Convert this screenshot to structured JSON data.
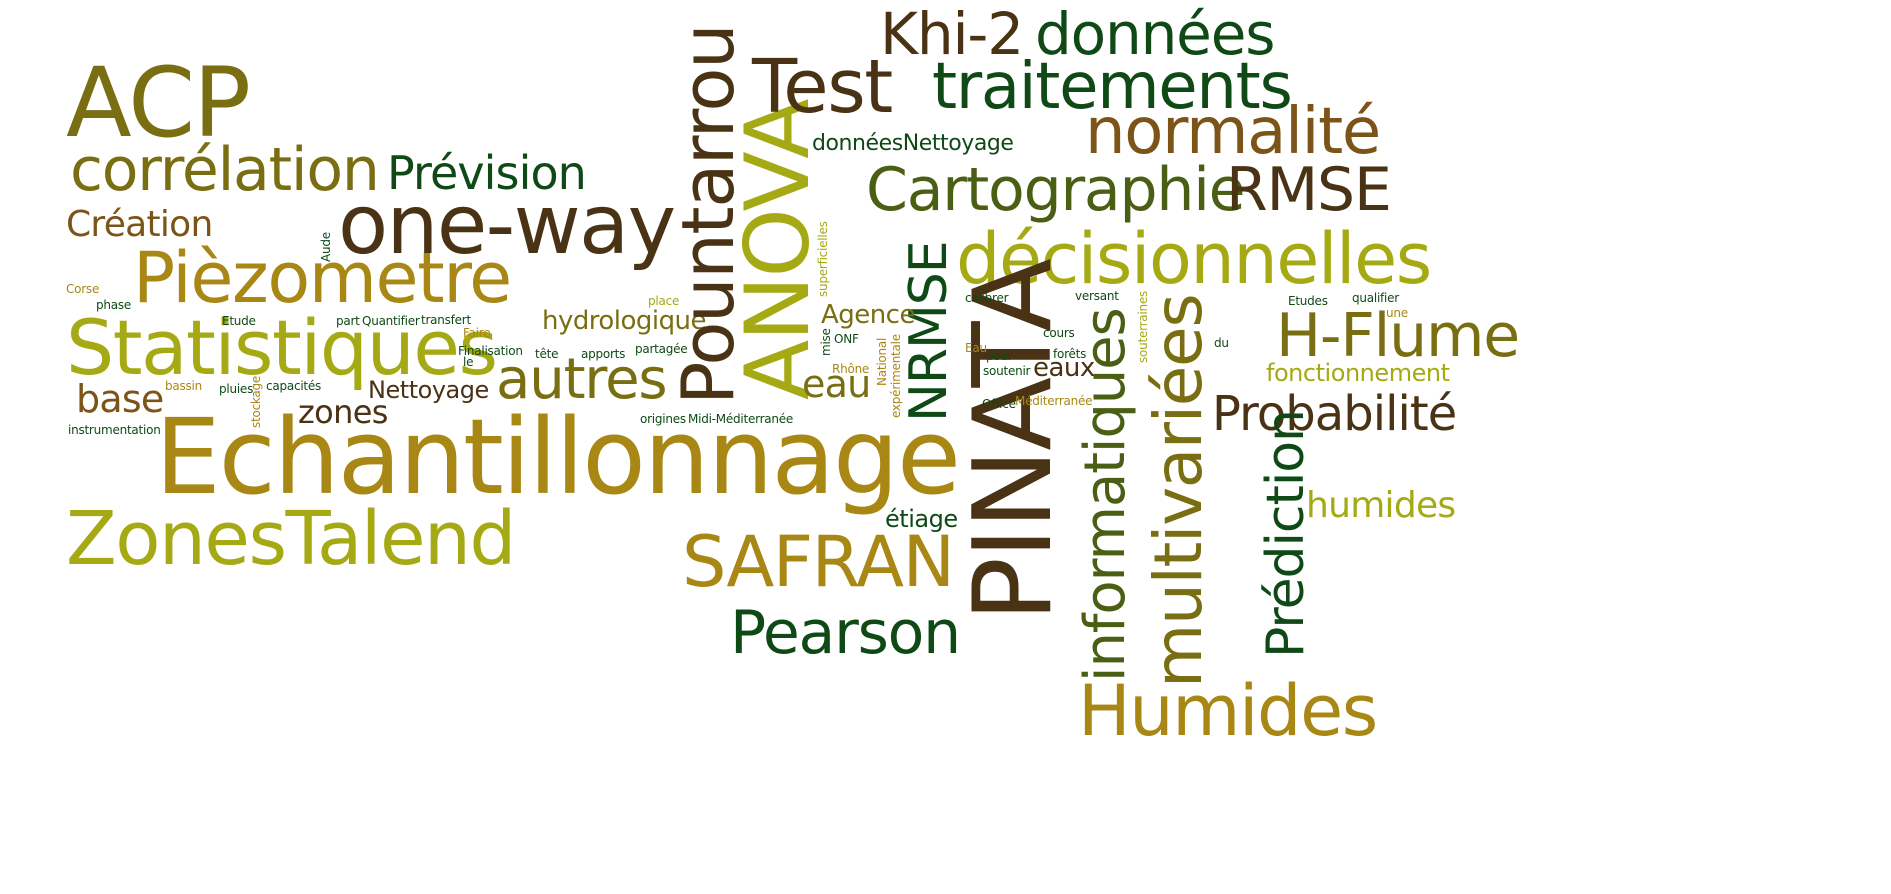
{
  "colors": {
    "dark_brown": "#4a3214",
    "olive": "#7a6e12",
    "dark_green": "#0f4a16",
    "yellow_green": "#a5aa14",
    "gold": "#a98714",
    "brown": "#7d5418"
  },
  "words": [
    {
      "key": "acp",
      "text": "ACP",
      "color": "#7a6e12"
    },
    {
      "key": "correlation",
      "text": "corrélation",
      "color": "#7a6e12"
    },
    {
      "key": "creation",
      "text": "Création",
      "color": "#7d5418"
    },
    {
      "key": "piezometre",
      "text": "Pièzometre",
      "color": "#a98714"
    },
    {
      "key": "statistiques",
      "text": "Statistiques",
      "color": "#a5aa14"
    },
    {
      "key": "base",
      "text": "base",
      "color": "#7d5418"
    },
    {
      "key": "echantillonnage",
      "text": "Echantillonnage",
      "color": "#a98714"
    },
    {
      "key": "zonestalend",
      "text": "ZonesTalend",
      "color": "#a5aa14"
    },
    {
      "key": "prevision",
      "text": "Prévision",
      "color": "#0f4a16"
    },
    {
      "key": "oneway",
      "text": "one-way",
      "color": "#4a3214"
    },
    {
      "key": "autres",
      "text": "autres",
      "color": "#7a6e12"
    },
    {
      "key": "nettoyage",
      "text": "Nettoyage",
      "color": "#4a3214"
    },
    {
      "key": "zones",
      "text": "zones",
      "color": "#4a3214"
    },
    {
      "key": "hydrologique",
      "text": "hydrologique",
      "color": "#7a6e12"
    },
    {
      "key": "pountarrou",
      "text": "Pountarrou",
      "color": "#4a3214"
    },
    {
      "key": "anova",
      "text": "ANOVA",
      "color": "#a5aa14"
    },
    {
      "key": "test",
      "text": "Test",
      "color": "#4a3214"
    },
    {
      "key": "khi2",
      "text": "Khi-2",
      "color": "#4a3214"
    },
    {
      "key": "donnees",
      "text": "données",
      "color": "#0f4a16"
    },
    {
      "key": "traitements",
      "text": "traitements",
      "color": "#0f4a16"
    },
    {
      "key": "normalite",
      "text": "normalité",
      "color": "#7d5418"
    },
    {
      "key": "donneesnettoyage",
      "text": "donnéesNettoyage",
      "color": "#0f4a16"
    },
    {
      "key": "cartographie",
      "text": "Cartographie",
      "color": "#4a5e14"
    },
    {
      "key": "rmse",
      "text": "RMSE",
      "color": "#4a3214"
    },
    {
      "key": "decisionnelles",
      "text": "décisionnelles",
      "color": "#a5aa14"
    },
    {
      "key": "nrmse",
      "text": "NRMSE",
      "color": "#0f4a16"
    },
    {
      "key": "pinata",
      "text": "PINATA",
      "color": "#4a3214"
    },
    {
      "key": "agence",
      "text": "Agence",
      "color": "#7a6e12"
    },
    {
      "key": "eau",
      "text": "eau",
      "color": "#7a6e12"
    },
    {
      "key": "safran",
      "text": "SAFRAN",
      "color": "#a98714"
    },
    {
      "key": "etiage",
      "text": "étiage",
      "color": "#0f4a16"
    },
    {
      "key": "pearson",
      "text": "Pearson",
      "color": "#0f4a16"
    },
    {
      "key": "informatiques",
      "text": "informatiques",
      "color": "#4a5e14"
    },
    {
      "key": "multivariees",
      "text": "multivariées",
      "color": "#7a6e12"
    },
    {
      "key": "humides_big",
      "text": "Humides",
      "color": "#a98714"
    },
    {
      "key": "hflume",
      "text": "H-Flume",
      "color": "#7a6e12"
    },
    {
      "key": "fonctionnement",
      "text": "fonctionnement",
      "color": "#a5aa14"
    },
    {
      "key": "probabilite",
      "text": "Probabilité",
      "color": "#4a3214"
    },
    {
      "key": "prediction",
      "text": "Prédiction",
      "color": "#0f4a16"
    },
    {
      "key": "humides_small",
      "text": "humides",
      "color": "#a5aa14"
    },
    {
      "key": "eaux",
      "text": "eaux",
      "color": "#4a3214"
    },
    {
      "key": "corse",
      "text": "Corse",
      "color": "#a98714"
    },
    {
      "key": "phase",
      "text": "phase",
      "color": "#0f4a16"
    },
    {
      "key": "etude1",
      "text": "Etude",
      "color": "#0f4a16"
    },
    {
      "key": "part",
      "text": "part",
      "color": "#0f4a16"
    },
    {
      "key": "quantifier",
      "text": "Quantifier",
      "color": "#0f4a16"
    },
    {
      "key": "transfert",
      "text": "transfert",
      "color": "#0f4a16"
    },
    {
      "key": "faire",
      "text": "Faire",
      "color": "#a98714"
    },
    {
      "key": "le",
      "text": "le",
      "color": "#0f4a16"
    },
    {
      "key": "finalisation",
      "text": "Finalisation",
      "color": "#0f4a16"
    },
    {
      "key": "tete",
      "text": "tête",
      "color": "#0f4a16"
    },
    {
      "key": "apports",
      "text": "apports",
      "color": "#0f4a16"
    },
    {
      "key": "partagee",
      "text": "partagée",
      "color": "#0f4a16"
    },
    {
      "key": "place",
      "text": "place",
      "color": "#a5aa14"
    },
    {
      "key": "bassin",
      "text": "bassin",
      "color": "#a98714"
    },
    {
      "key": "pluies",
      "text": "pluies",
      "color": "#0f4a16"
    },
    {
      "key": "stockage",
      "text": "stockage",
      "color": "#a98714"
    },
    {
      "key": "capacites",
      "text": "capacités",
      "color": "#0f4a16"
    },
    {
      "key": "instrumentation",
      "text": "instrumentation",
      "color": "#0f4a16"
    },
    {
      "key": "aude",
      "text": "Aude",
      "color": "#0f4a16"
    },
    {
      "key": "origines",
      "text": "origines",
      "color": "#0f4a16"
    },
    {
      "key": "midimed",
      "text": "Midi-Méditerranée",
      "color": "#0f4a16"
    },
    {
      "key": "superficielles",
      "text": "superficielles",
      "color": "#a5aa14"
    },
    {
      "key": "mise",
      "text": "mise",
      "color": "#0f4a16"
    },
    {
      "key": "onf",
      "text": "ONF",
      "color": "#0f4a16"
    },
    {
      "key": "rhone",
      "text": "Rhône",
      "color": "#a98714"
    },
    {
      "key": "national",
      "text": "National",
      "color": "#a98714"
    },
    {
      "key": "experimentale",
      "text": "expérimentale",
      "color": "#a98714"
    },
    {
      "key": "calibrer",
      "text": "calibrer",
      "color": "#0f4a16"
    },
    {
      "key": "versant",
      "text": "versant",
      "color": "#0f4a16"
    },
    {
      "key": "cours",
      "text": "cours",
      "color": "#0f4a16"
    },
    {
      "key": "eau_small",
      "text": "Eau",
      "color": "#a98714"
    },
    {
      "key": "pour",
      "text": "pour",
      "color": "#0f4a16"
    },
    {
      "key": "forets",
      "text": "forêts",
      "color": "#0f4a16"
    },
    {
      "key": "soutenir",
      "text": "soutenir",
      "color": "#0f4a16"
    },
    {
      "key": "office",
      "text": "Office",
      "color": "#0f4a16"
    },
    {
      "key": "mediterranee",
      "text": "Méditerranée",
      "color": "#a98714"
    },
    {
      "key": "souterraines",
      "text": "souterraines",
      "color": "#a5aa14"
    },
    {
      "key": "du",
      "text": "du",
      "color": "#0f4a16"
    },
    {
      "key": "etudes",
      "text": "Etudes",
      "color": "#0f4a16"
    },
    {
      "key": "qualifier",
      "text": "qualifier",
      "color": "#0f4a16"
    },
    {
      "key": "une",
      "text": "une",
      "color": "#a98714"
    }
  ]
}
